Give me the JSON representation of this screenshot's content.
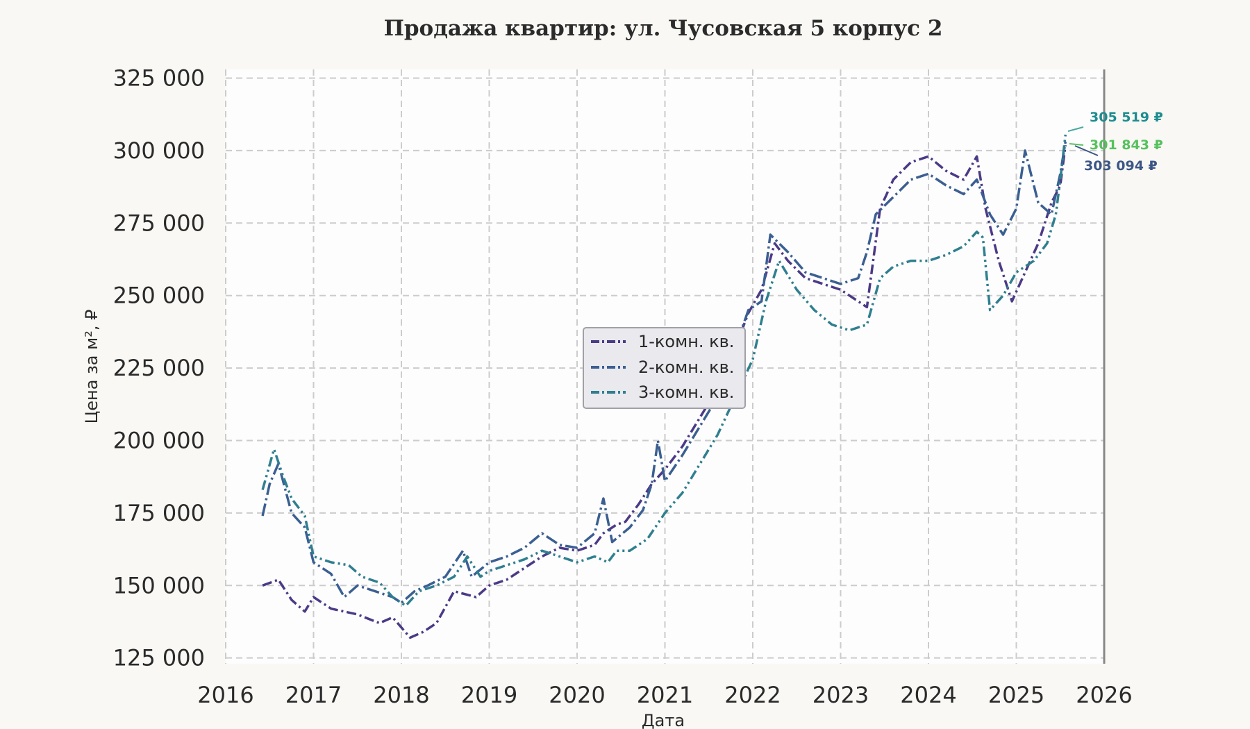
{
  "chart_data": {
    "type": "line",
    "title": "Продажа квартир: ул. Чусовская 5 корпус 2",
    "xlabel": "Дата",
    "ylabel": "Цена за м², ₽",
    "xlim": [
      2016.0,
      2026.0
    ],
    "ylim": [
      123000,
      328000
    ],
    "x_ticks": [
      2016,
      2017,
      2018,
      2019,
      2020,
      2021,
      2022,
      2023,
      2024,
      2025,
      2026
    ],
    "x_tick_labels": [
      "2016",
      "2017",
      "2018",
      "2019",
      "2020",
      "2021",
      "2022",
      "2023",
      "2024",
      "2025",
      "2026"
    ],
    "y_ticks": [
      125000,
      150000,
      175000,
      200000,
      225000,
      250000,
      275000,
      300000,
      325000
    ],
    "y_tick_labels": [
      "125 000",
      "150 000",
      "175 000",
      "200 000",
      "225 000",
      "250 000",
      "275 000",
      "300 000",
      "325 000"
    ],
    "grid": true,
    "legend_position": "center",
    "series": [
      {
        "name": "1-комн. кв.",
        "color": "#4b3a86",
        "dash": "14,5,3,5",
        "x": [
          2016.42,
          2016.6,
          2016.75,
          2016.9,
          2017.0,
          2017.2,
          2017.5,
          2017.75,
          2017.9,
          2018.1,
          2018.25,
          2018.4,
          2018.6,
          2018.85,
          2019.0,
          2019.2,
          2019.4,
          2019.6,
          2019.8,
          2020.0,
          2020.2,
          2020.3,
          2020.45,
          2020.55,
          2020.7,
          2020.85,
          2021.0,
          2021.2,
          2021.4,
          2021.6,
          2021.8,
          2021.95,
          2022.1,
          2022.25,
          2022.4,
          2022.6,
          2022.8,
          2023.0,
          2023.2,
          2023.3,
          2023.45,
          2023.6,
          2023.8,
          2024.0,
          2024.2,
          2024.4,
          2024.55,
          2024.65,
          2024.8,
          2024.95,
          2025.1,
          2025.25,
          2025.4,
          2025.5,
          2025.56
        ],
        "y": [
          150000,
          152000,
          145000,
          141000,
          146000,
          142000,
          140000,
          137000,
          139000,
          132000,
          134000,
          137000,
          148000,
          146000,
          150000,
          152000,
          156000,
          160000,
          163000,
          162000,
          164000,
          168000,
          171000,
          172000,
          178000,
          185000,
          190000,
          198000,
          208000,
          218000,
          232000,
          244000,
          252000,
          268000,
          262000,
          256000,
          254000,
          252000,
          248000,
          246000,
          280000,
          290000,
          296000,
          298000,
          293000,
          290000,
          298000,
          280000,
          262000,
          248000,
          258000,
          268000,
          282000,
          288000,
          301843
        ]
      },
      {
        "name": "2-комн. кв.",
        "color": "#3b5f92",
        "dash": "18,5,3,5",
        "x": [
          2016.42,
          2016.5,
          2016.6,
          2016.75,
          2016.9,
          2017.0,
          2017.2,
          2017.35,
          2017.5,
          2017.7,
          2017.9,
          2018.0,
          2018.15,
          2018.3,
          2018.5,
          2018.7,
          2018.8,
          2019.0,
          2019.2,
          2019.4,
          2019.6,
          2019.8,
          2020.0,
          2020.2,
          2020.3,
          2020.4,
          2020.6,
          2020.75,
          2020.85,
          2020.92,
          2021.0,
          2021.2,
          2021.4,
          2021.6,
          2021.8,
          2021.95,
          2022.1,
          2022.2,
          2022.4,
          2022.6,
          2022.8,
          2023.0,
          2023.2,
          2023.3,
          2023.4,
          2023.6,
          2023.8,
          2024.0,
          2024.2,
          2024.4,
          2024.55,
          2024.7,
          2024.85,
          2025.0,
          2025.1,
          2025.25,
          2025.4,
          2025.5,
          2025.56
        ],
        "y": [
          174000,
          185000,
          192000,
          175000,
          170000,
          158000,
          154000,
          146000,
          150000,
          148000,
          146000,
          144000,
          148000,
          150000,
          153000,
          162000,
          153000,
          158000,
          160000,
          163000,
          168000,
          164000,
          163000,
          168000,
          180000,
          165000,
          170000,
          176000,
          185000,
          200000,
          186000,
          195000,
          205000,
          215000,
          232000,
          245000,
          248000,
          271000,
          265000,
          258000,
          256000,
          254000,
          256000,
          265000,
          278000,
          284000,
          290000,
          292000,
          288000,
          285000,
          290000,
          278000,
          271000,
          280000,
          300000,
          282000,
          278000,
          292000,
          303094
        ]
      },
      {
        "name": "3-комн. кв.",
        "color": "#2f7f8f",
        "dash": "14,5,3,5,3,5",
        "x": [
          2016.42,
          2016.55,
          2016.65,
          2016.75,
          2016.9,
          2017.0,
          2017.2,
          2017.4,
          2017.55,
          2017.75,
          2017.9,
          2018.05,
          2018.2,
          2018.4,
          2018.6,
          2018.75,
          2018.9,
          2019.0,
          2019.2,
          2019.4,
          2019.6,
          2019.8,
          2020.0,
          2020.2,
          2020.35,
          2020.45,
          2020.6,
          2020.8,
          2021.0,
          2021.2,
          2021.4,
          2021.6,
          2021.8,
          2022.0,
          2022.15,
          2022.3,
          2022.5,
          2022.7,
          2022.9,
          2023.1,
          2023.3,
          2023.45,
          2023.6,
          2023.8,
          2024.0,
          2024.2,
          2024.4,
          2024.55,
          2024.62,
          2024.7,
          2024.85,
          2025.0,
          2025.2,
          2025.35,
          2025.45,
          2025.5,
          2025.56
        ],
        "y": [
          183000,
          197000,
          188000,
          180000,
          174000,
          160000,
          158000,
          157000,
          153000,
          151000,
          146000,
          143000,
          148000,
          150000,
          153000,
          160000,
          153000,
          155000,
          157000,
          159000,
          162000,
          160000,
          158000,
          160000,
          158000,
          162000,
          162000,
          166000,
          175000,
          182000,
          192000,
          202000,
          215000,
          228000,
          248000,
          262000,
          252000,
          245000,
          240000,
          238000,
          240000,
          256000,
          260000,
          262000,
          262000,
          264000,
          267000,
          272000,
          270000,
          245000,
          250000,
          258000,
          262000,
          268000,
          278000,
          290000,
          305519
        ]
      }
    ],
    "annotations": [
      {
        "text": "305 519 ₽",
        "color": "#1e8d8f"
      },
      {
        "text": "301 843 ₽",
        "color": "#56c15e"
      },
      {
        "text": "303 094 ₽",
        "color": "#3b5585"
      }
    ]
  }
}
